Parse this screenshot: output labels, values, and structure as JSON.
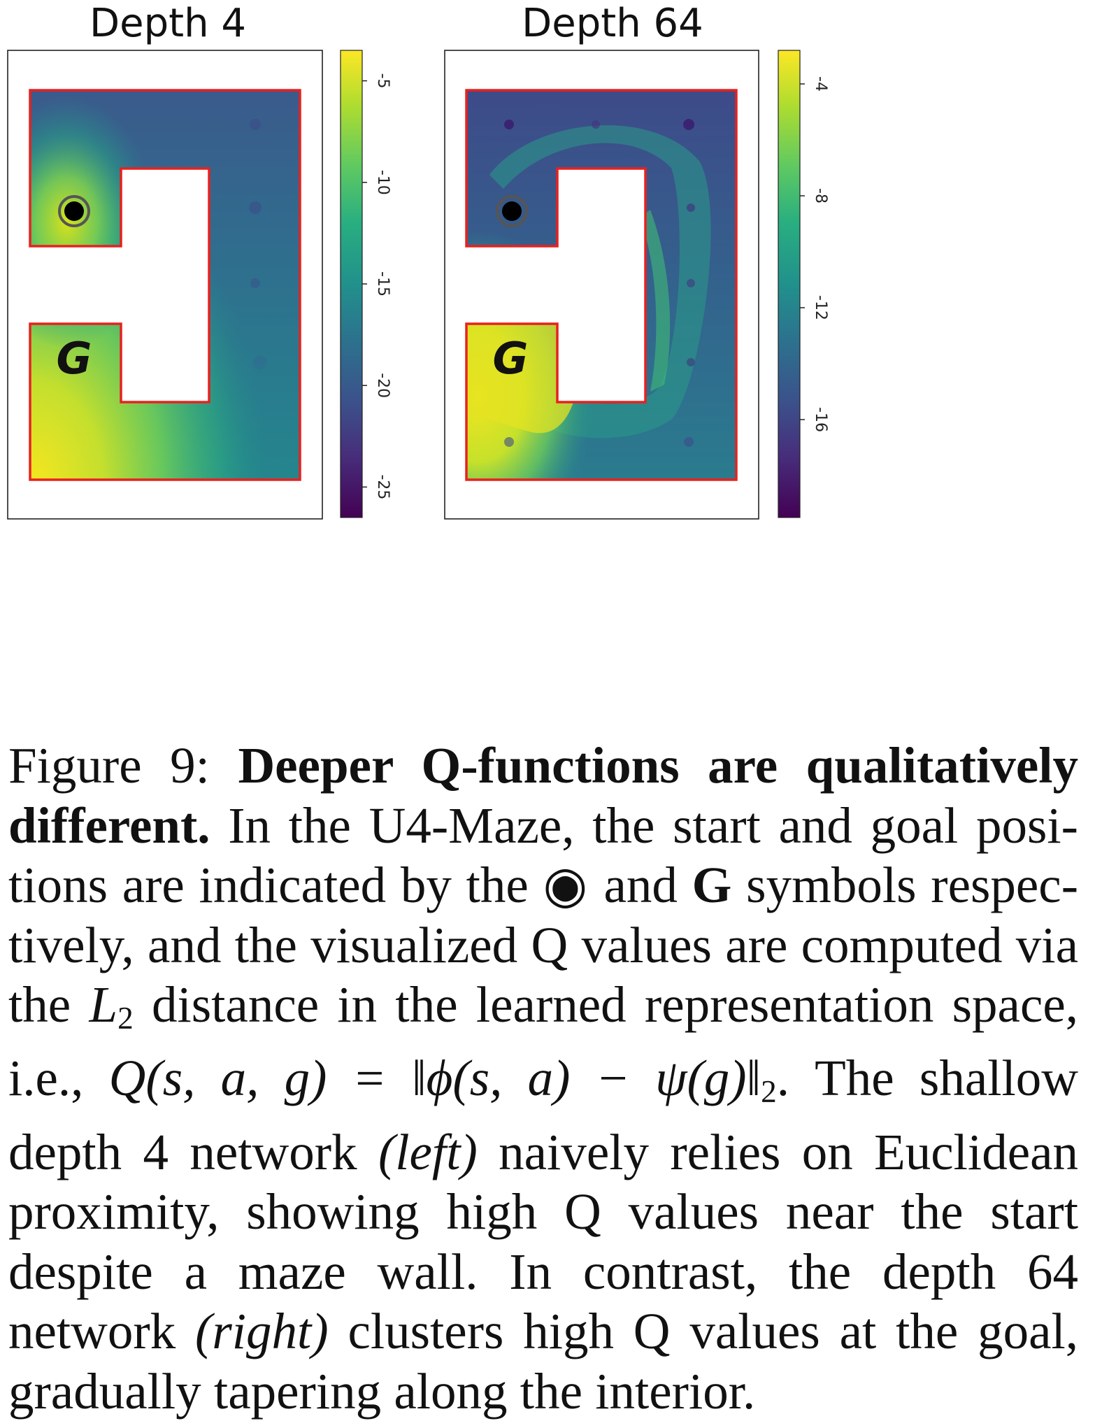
{
  "figure": {
    "panels": [
      {
        "title": "Depth 4",
        "colorbar_ticks": [
          "-5",
          "-10",
          "-15",
          "-20",
          "-25"
        ],
        "colorbar_range": [
          -26.5,
          -3.5
        ],
        "goal_label": "G"
      },
      {
        "title": "Depth 64",
        "colorbar_ticks": [
          "-4",
          "-8",
          "-12",
          "-16"
        ],
        "colorbar_range": [
          -19.5,
          -2.8
        ],
        "goal_label": "G"
      }
    ],
    "colors": {
      "maze_border": "#e8211f",
      "colormap": [
        "#440154",
        "#3b528b",
        "#21918c",
        "#5ec962",
        "#fde725"
      ],
      "start_marker": "#000000"
    }
  },
  "caption": {
    "label": "Figure 9:",
    "bold_title": "Deeper Q-functions are qualitatively different.",
    "text_1": "In the U4-Maze, the start and goal posi-tions are indicated by the",
    "symbol_start": "◉",
    "text_2": "and",
    "symbol_goal": "G",
    "text_3": "symbols respec-tively, and the visualized Q values are computed via the",
    "math_L": "L",
    "math_L_sub": "2",
    "text_4": "distance in the learned representation space, i.e.,",
    "math_formula": "Q(s, a, g) = ‖ϕ(s, a) − ψ(g)‖",
    "math_formula_sub": "2",
    "text_5": ". The shallow depth 4 network",
    "italic_left": "(left)",
    "text_6": "naively relies on Euclidean proximity, showing high Q values near the start despite a maze wall. In contrast, the depth 64 network",
    "italic_right": "(right)",
    "text_7": "clusters high Q values at the goal, gradually tapering along the interior."
  }
}
